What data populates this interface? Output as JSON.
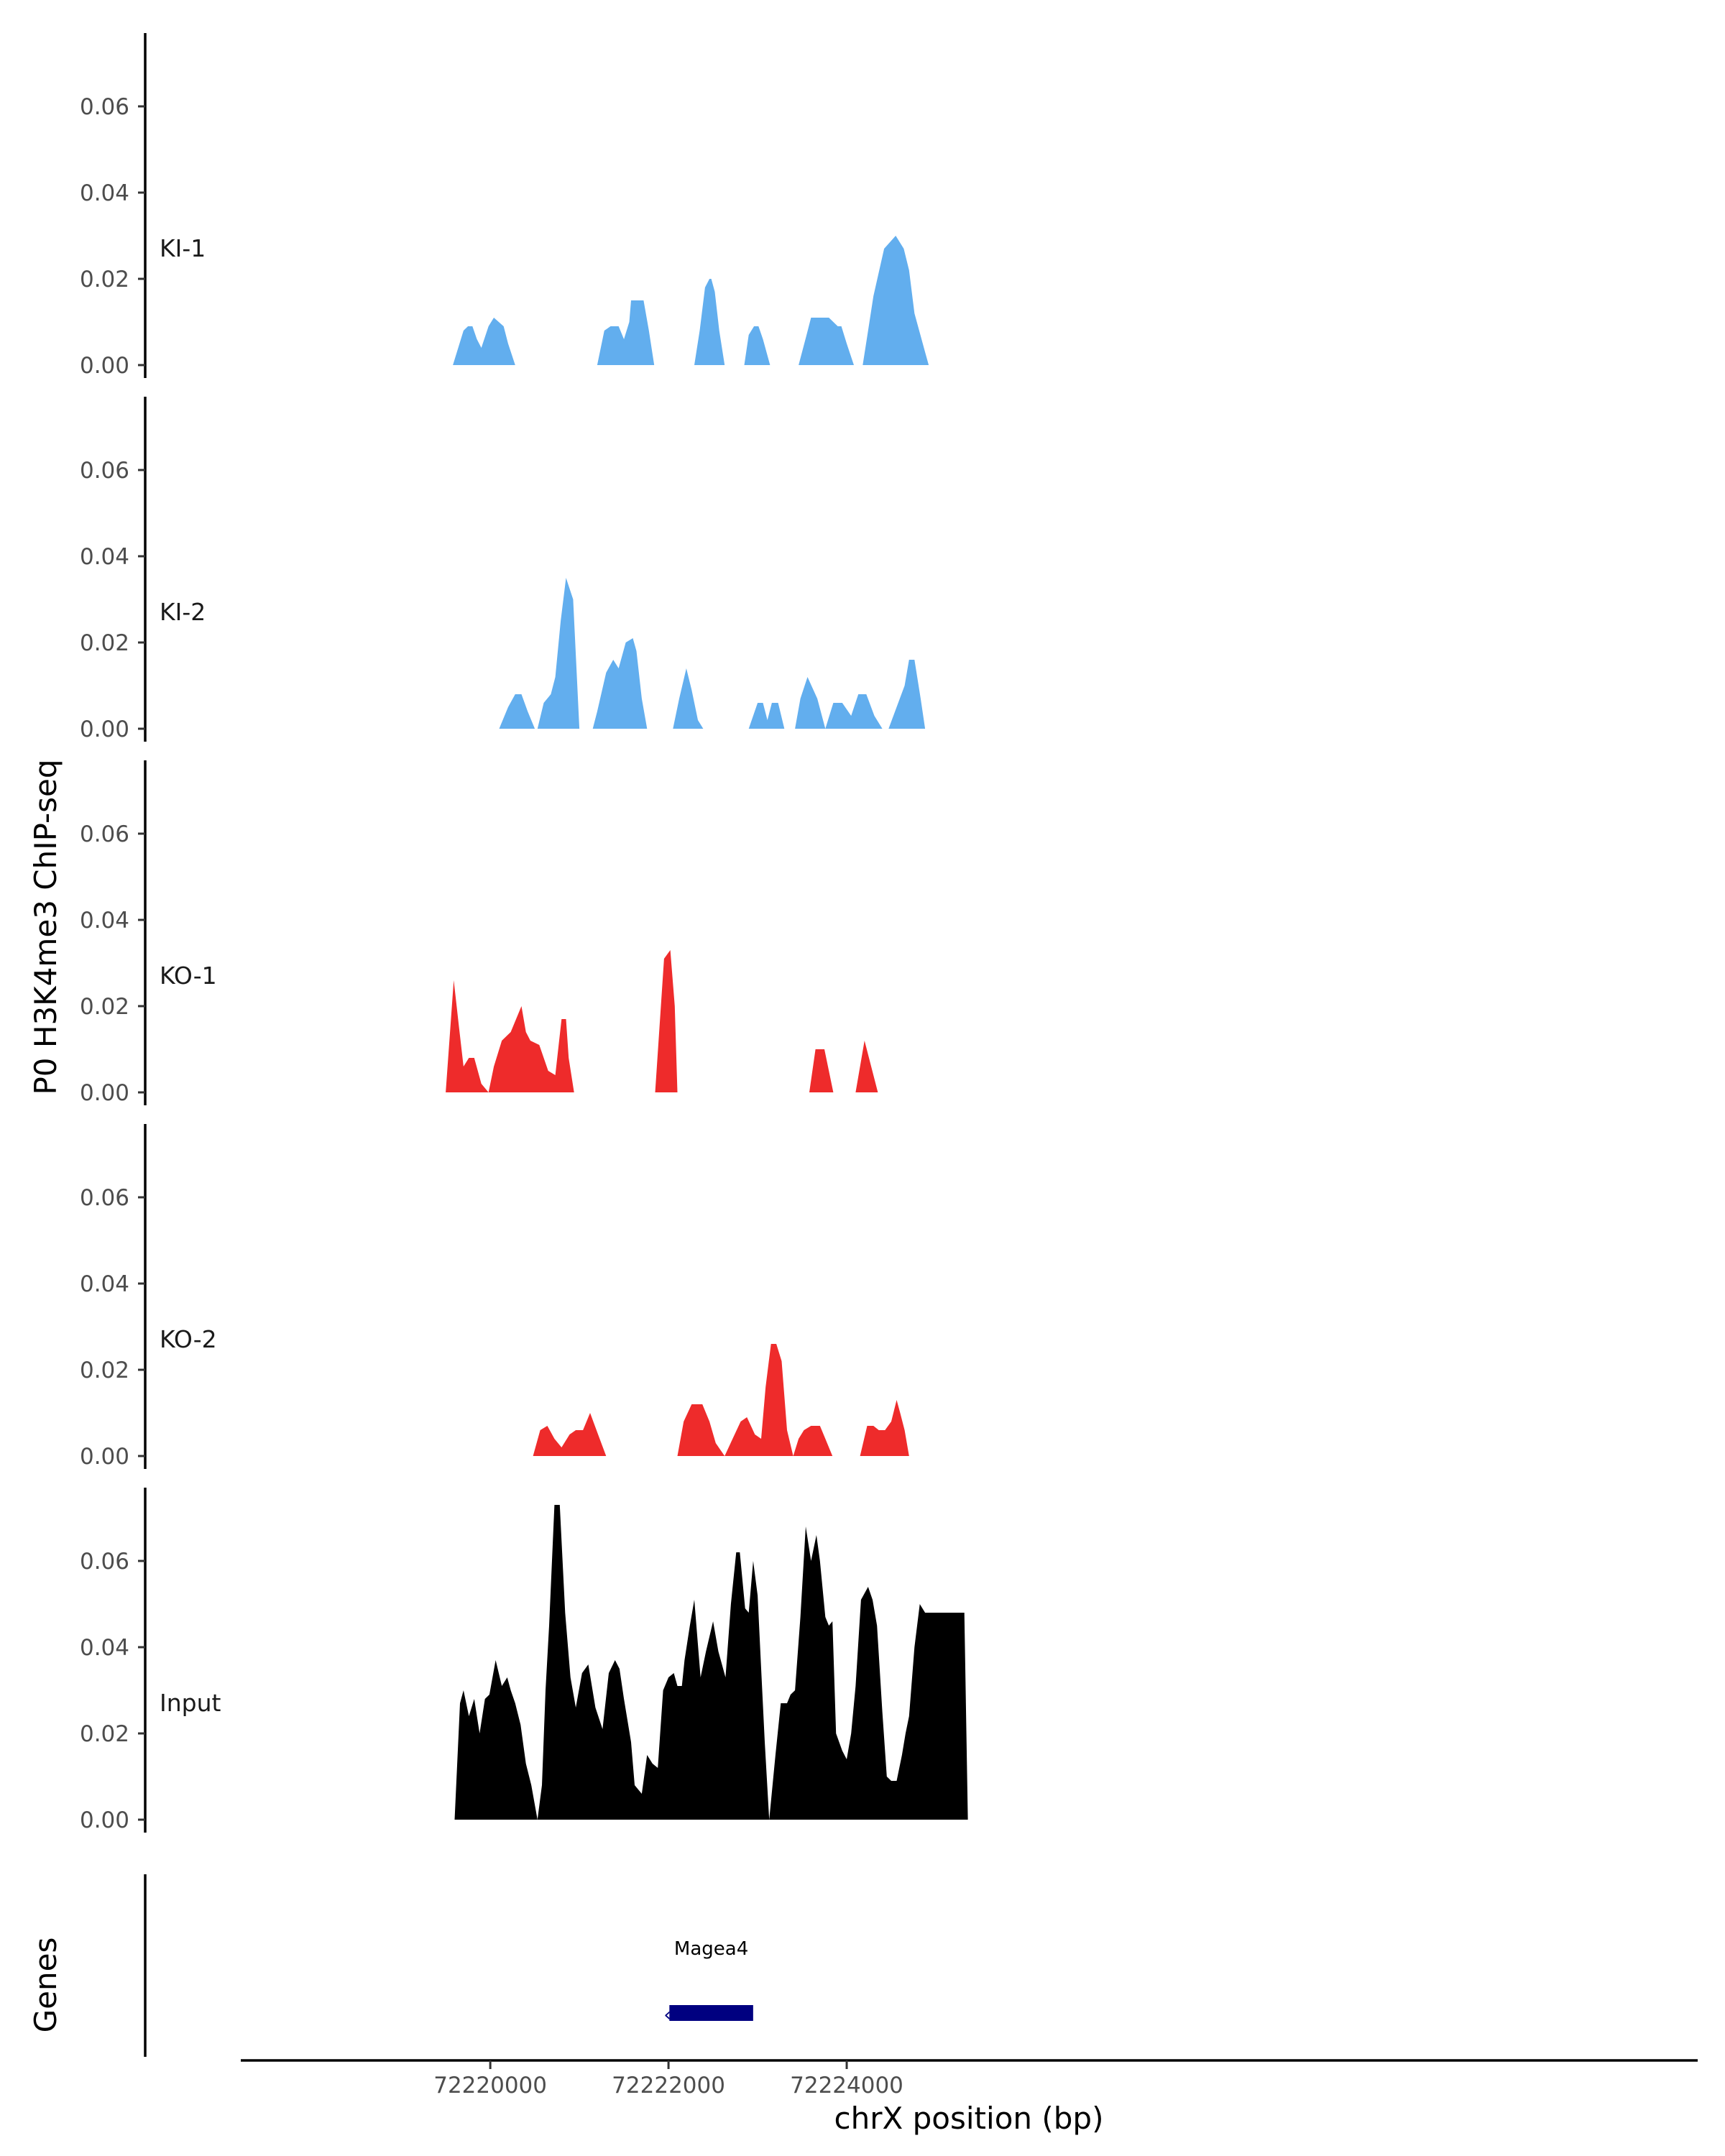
{
  "chart_data": {
    "type": "area",
    "title": "",
    "ylabel": "P0 H3K4me3 ChIP-seq",
    "xlabel": "chrX position (bp)",
    "ylim": [
      0,
      0.078
    ],
    "xlim": [
      72217200,
      72233550
    ],
    "yticks": [
      0.0,
      0.02,
      0.04,
      0.06
    ],
    "ytick_labels": [
      "0.00",
      "0.02",
      "0.04",
      "0.06"
    ],
    "xticks": [
      72220000,
      72222000,
      72224000
    ],
    "xtick_labels": [
      "72220000",
      "72222000",
      "72224000"
    ],
    "colors": {
      "KI": "#62aeee",
      "KO": "#ee2b2b",
      "Input": "#000000",
      "gene": "#000080",
      "axis": "#000000"
    },
    "series": [
      {
        "name": "KI-1",
        "color": "#62aeee",
        "x": [
          72219580,
          72219700,
          72219750,
          72219800,
          72219850,
          72219900,
          72219980,
          72220040,
          72220150,
          72220200,
          72220280,
          72220330,
          72221200,
          72221280,
          72221350,
          72221440,
          72221500,
          72221560,
          72221580,
          72221650,
          72221720,
          72221780,
          72221840,
          72221860,
          72222290,
          72222350,
          72222410,
          72222460,
          72222480,
          72222520,
          72222570,
          72222630,
          72222850,
          72222900,
          72222960,
          72223010,
          72223060,
          72223140,
          72223460,
          72223550,
          72223600,
          72223700,
          72223800,
          72223900,
          72223940,
          72224000,
          72224080,
          72224180,
          72224240,
          72224300,
          72224420,
          72224550,
          72224640,
          72224700,
          72224760,
          72224880,
          72224920,
          72224970,
          72225010
        ],
        "y": [
          0.0,
          0.008,
          0.009,
          0.009,
          0.006,
          0.004,
          0.009,
          0.011,
          0.009,
          0.005,
          0.0,
          0.0,
          0.0,
          0.008,
          0.009,
          0.009,
          0.006,
          0.01,
          0.015,
          0.015,
          0.015,
          0.008,
          0.0,
          0.0,
          0.0,
          0.008,
          0.018,
          0.02,
          0.02,
          0.017,
          0.008,
          0.0,
          0.0,
          0.007,
          0.009,
          0.009,
          0.006,
          0.0,
          0.0,
          0.007,
          0.011,
          0.011,
          0.011,
          0.009,
          0.009,
          0.005,
          0.0,
          0.0,
          0.008,
          0.016,
          0.027,
          0.03,
          0.027,
          0.022,
          0.012,
          0.003,
          0.0,
          0.0,
          0.0
        ]
      },
      {
        "name": "KI-2",
        "color": "#62aeee",
        "x": [
          72220100,
          72220200,
          72220280,
          72220350,
          72220420,
          72220500,
          72220530,
          72220600,
          72220680,
          72220730,
          72220790,
          72220850,
          72220930,
          72221000,
          72221150,
          72221200,
          72221300,
          72221380,
          72221440,
          72221520,
          72221600,
          72221640,
          72221700,
          72221760,
          72221850,
          72222050,
          72222120,
          72222200,
          72222260,
          72222330,
          72222390,
          72222420,
          72222900,
          72223000,
          72223060,
          72223110,
          72223160,
          72223230,
          72223300,
          72223420,
          72223480,
          72223560,
          72223670,
          72223760,
          72223850,
          72223950,
          72224050,
          72224130,
          72224220,
          72224310,
          72224400,
          72224470,
          72224650,
          72224700,
          72224760,
          72224830,
          72224880,
          72224920,
          72224960
        ],
        "y": [
          0.0,
          0.005,
          0.008,
          0.008,
          0.004,
          0.0,
          0.0,
          0.006,
          0.008,
          0.012,
          0.025,
          0.035,
          0.03,
          0.0,
          0.0,
          0.004,
          0.013,
          0.016,
          0.014,
          0.02,
          0.021,
          0.018,
          0.007,
          0.0,
          0.0,
          0.0,
          0.007,
          0.014,
          0.009,
          0.002,
          0.0,
          0.0,
          0.0,
          0.006,
          0.006,
          0.002,
          0.006,
          0.006,
          0.0,
          0.0,
          0.007,
          0.012,
          0.007,
          0.0,
          0.006,
          0.006,
          0.003,
          0.008,
          0.008,
          0.003,
          0.0,
          0.0,
          0.01,
          0.016,
          0.016,
          0.007,
          0.0,
          0.0,
          0.0
        ]
      },
      {
        "name": "KO-1",
        "color": "#ee2b2b",
        "x": [
          72219500,
          72219590,
          72219650,
          72219700,
          72219760,
          72219820,
          72219900,
          72219980,
          72220040,
          72220130,
          72220230,
          72220350,
          72220400,
          72220450,
          72220550,
          72220650,
          72220730,
          72220800,
          72220850,
          72220880,
          72220940,
          72221050,
          72221100,
          72221150,
          72221850,
          72221950,
          72222020,
          72222070,
          72222100,
          72222200,
          72222300,
          72222400,
          72223200,
          72223300,
          72223420,
          72223540,
          72223580,
          72223650,
          72223750,
          72223850,
          72223900,
          72224050,
          72224100,
          72224200,
          72224350,
          72224400,
          72224480,
          72224600,
          72224680,
          72224720,
          72224760,
          72224820,
          72225000,
          72225120,
          72225170,
          72225230,
          72225280,
          72225320
        ],
        "y": [
          0.0,
          0.026,
          0.015,
          0.006,
          0.008,
          0.008,
          0.002,
          0.0,
          0.006,
          0.012,
          0.014,
          0.02,
          0.014,
          0.012,
          0.011,
          0.005,
          0.004,
          0.017,
          0.017,
          0.008,
          0.0,
          0.0,
          0.0,
          0.0,
          0.0,
          0.031,
          0.033,
          0.02,
          0.0,
          0.0,
          0.0,
          0.0,
          0.0,
          0.0,
          0.0,
          0.0,
          0.0,
          0.01,
          0.01,
          0.0,
          0.0,
          0.0,
          0.0,
          0.012,
          0.0,
          0.0,
          0.0,
          0.0,
          0.0,
          0.0,
          0.0,
          0.0,
          0.0,
          0.0,
          0.0,
          0.0,
          0.0,
          0.0
        ]
      },
      {
        "name": "KO-2",
        "color": "#ee2b2b",
        "x": [
          72220400,
          72220480,
          72220560,
          72220640,
          72220720,
          72220800,
          72220890,
          72220960,
          72221040,
          72221120,
          72221210,
          72221300,
          72221860,
          72221950,
          72222020,
          72222100,
          72222170,
          72222260,
          72222380,
          72222460,
          72222530,
          72222630,
          72222720,
          72222810,
          72222880,
          72222970,
          72223040,
          72223090,
          72223150,
          72223210,
          72223270,
          72223330,
          72223400,
          72223460,
          72223520,
          72223600,
          72223700,
          72223760,
          72223840,
          72223900,
          72223960,
          72224000,
          72224080,
          72224150,
          72224230,
          72224300,
          72224360,
          72224430,
          72224500,
          72224560,
          72224600,
          72224650,
          72224700,
          72224800,
          72224900,
          72224960,
          72225030,
          72225100,
          72225150,
          72225230,
          72225280,
          72225320
        ],
        "y": [
          0.0,
          0.0,
          0.006,
          0.007,
          0.004,
          0.002,
          0.005,
          0.006,
          0.006,
          0.01,
          0.005,
          0.0,
          0.0,
          0.0,
          0.0,
          0.0,
          0.008,
          0.012,
          0.012,
          0.008,
          0.003,
          0.0,
          0.004,
          0.008,
          0.009,
          0.005,
          0.004,
          0.016,
          0.026,
          0.026,
          0.022,
          0.006,
          0.0,
          0.004,
          0.006,
          0.007,
          0.007,
          0.004,
          0.0,
          0.0,
          0.0,
          0.0,
          0.0,
          0.0,
          0.007,
          0.007,
          0.006,
          0.006,
          0.008,
          0.013,
          0.01,
          0.006,
          0.0,
          0.0,
          0.0,
          0.0,
          0.0,
          0.0,
          0.0,
          0.0,
          0.0,
          0.0
        ]
      },
      {
        "name": "Input",
        "color": "#000000",
        "x": [
          72219600,
          72219660,
          72219700,
          72219760,
          72219820,
          72219880,
          72219940,
          72219990,
          72220060,
          72220130,
          72220190,
          72220230,
          72220280,
          72220340,
          72220400,
          72220460,
          72220530,
          72220580,
          72220620,
          72220660,
          72220720,
          72220780,
          72220840,
          72220900,
          72220960,
          72221030,
          72221100,
          72221180,
          72221260,
          72221330,
          72221400,
          72221450,
          72221500,
          72221580,
          72221620,
          72221700,
          72221760,
          72221820,
          72221880,
          72221940,
          72222000,
          72222060,
          72222100,
          72222150,
          72222180,
          72222240,
          72222290,
          72222360,
          72222420,
          72222500,
          72222560,
          72222640,
          72222700,
          72222760,
          72222800,
          72222860,
          72222900,
          72222950,
          72223000,
          72223040,
          72223080,
          72223130,
          72223200,
          72223260,
          72223330,
          72223370,
          72223420,
          72223480,
          72223540,
          72223600,
          72223660,
          72223700,
          72223760,
          72223800,
          72223840,
          72223880,
          72223950,
          72224000,
          72224050,
          72224100,
          72224160,
          72224240,
          72224290,
          72224340,
          72224400,
          72224450,
          72224500,
          72224560,
          72224620,
          72224660,
          72224700,
          72224760,
          72224820,
          72224880,
          72224930,
          72224980,
          72225040,
          72225080,
          72225140,
          72225200,
          72225260,
          72225320,
          72225360
        ],
        "y": [
          0.0,
          0.027,
          0.03,
          0.024,
          0.028,
          0.02,
          0.028,
          0.029,
          0.037,
          0.031,
          0.033,
          0.03,
          0.027,
          0.022,
          0.013,
          0.008,
          0.0,
          0.008,
          0.03,
          0.045,
          0.073,
          0.073,
          0.048,
          0.033,
          0.026,
          0.034,
          0.036,
          0.026,
          0.021,
          0.034,
          0.037,
          0.035,
          0.028,
          0.018,
          0.008,
          0.006,
          0.015,
          0.013,
          0.012,
          0.03,
          0.033,
          0.034,
          0.031,
          0.031,
          0.037,
          0.045,
          0.051,
          0.033,
          0.039,
          0.046,
          0.039,
          0.033,
          0.05,
          0.062,
          0.062,
          0.049,
          0.048,
          0.06,
          0.052,
          0.035,
          0.018,
          0.0,
          0.015,
          0.027,
          0.027,
          0.029,
          0.03,
          0.047,
          0.068,
          0.06,
          0.066,
          0.06,
          0.047,
          0.045,
          0.046,
          0.02,
          0.016,
          0.014,
          0.02,
          0.031,
          0.051,
          0.054,
          0.051,
          0.045,
          0.025,
          0.01,
          0.009,
          0.009,
          0.015,
          0.02,
          0.024,
          0.04,
          0.05,
          0.048,
          0.048,
          0.048,
          0.048,
          0.048,
          0.048,
          0.048,
          0.048,
          0.048,
          0.0
        ]
      }
    ],
    "genes_panel": {
      "label": "Genes",
      "gene": {
        "name": "Magea4",
        "start": 72222010,
        "end": 72222950,
        "strand": "-"
      }
    }
  }
}
